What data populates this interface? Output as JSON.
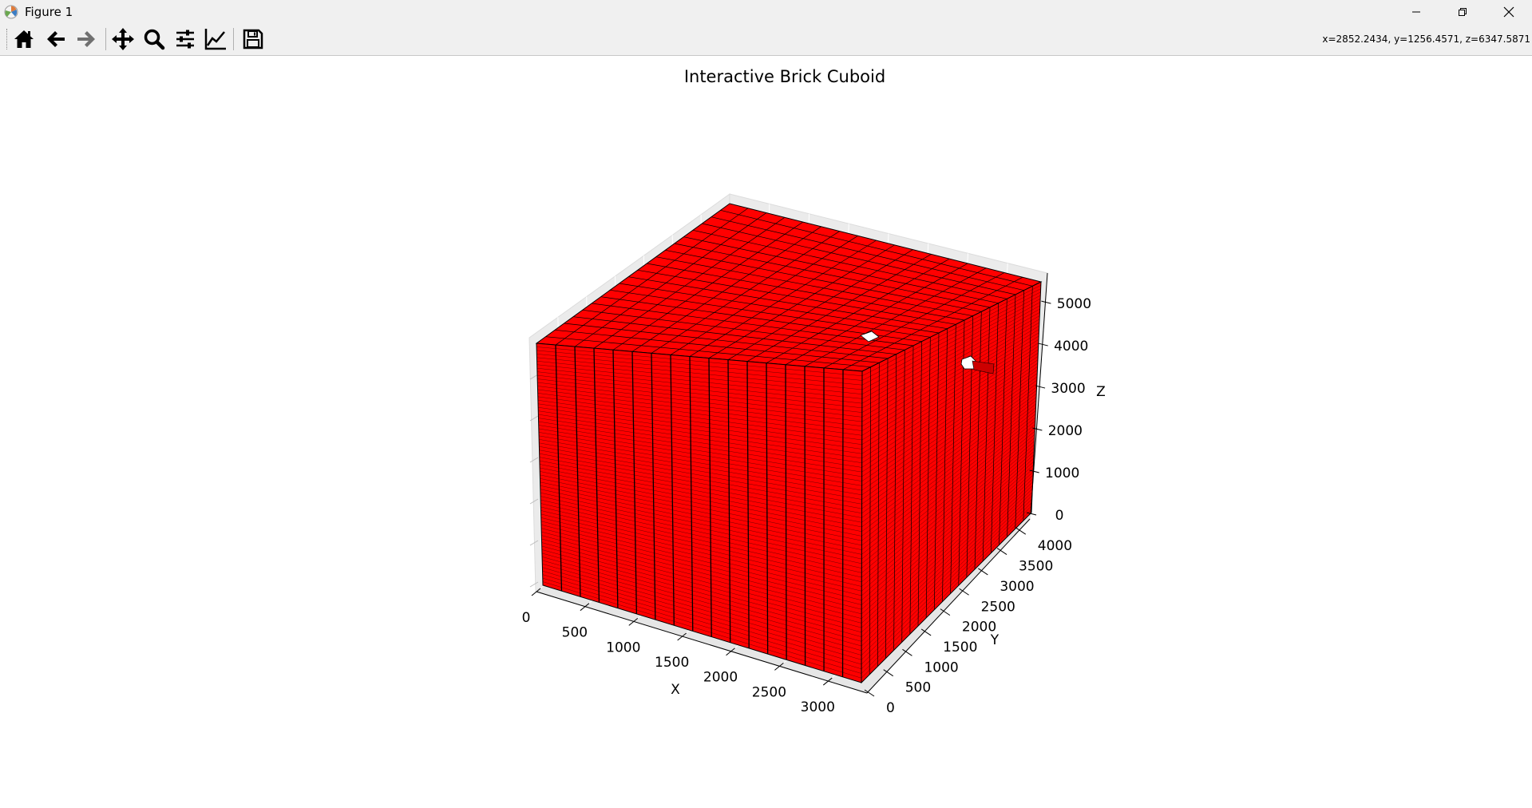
{
  "window": {
    "title": "Figure 1",
    "icons": {
      "app": "matplotlib-icon",
      "minimize": "minimize-icon",
      "restore": "restore-icon",
      "close": "close-icon"
    }
  },
  "toolbar": {
    "buttons": [
      {
        "name": "home",
        "icon": "home-icon"
      },
      {
        "name": "back",
        "icon": "arrow-left-icon"
      },
      {
        "name": "forward",
        "icon": "arrow-right-icon"
      },
      {
        "name": "pan",
        "icon": "move-icon"
      },
      {
        "name": "zoom",
        "icon": "search-icon"
      },
      {
        "name": "subplots",
        "icon": "sliders-icon"
      },
      {
        "name": "customize",
        "icon": "line-chart-icon"
      },
      {
        "name": "save",
        "icon": "floppy-icon"
      }
    ],
    "coords": "x=2852.2434, y=1256.4571, z=6347.5871"
  },
  "chart_data": {
    "type": "voxels",
    "title": "Interactive Brick Cuboid",
    "xlabel": "X",
    "ylabel": "Y",
    "zlabel": "Z",
    "xticks": [
      "0",
      "500",
      "1000",
      "1500",
      "2000",
      "2500",
      "3000"
    ],
    "yticks": [
      "0",
      "500",
      "1000",
      "1500",
      "2000",
      "2500",
      "3000",
      "3500",
      "4000"
    ],
    "zticks": [
      "0",
      "1000",
      "2000",
      "3000",
      "4000",
      "5000"
    ],
    "xlim": [
      0,
      3400
    ],
    "ylim": [
      0,
      4300
    ],
    "zlim": [
      0,
      5700
    ],
    "brick_color": "#ff0000",
    "edge_color": "#000000",
    "grid": true
  }
}
